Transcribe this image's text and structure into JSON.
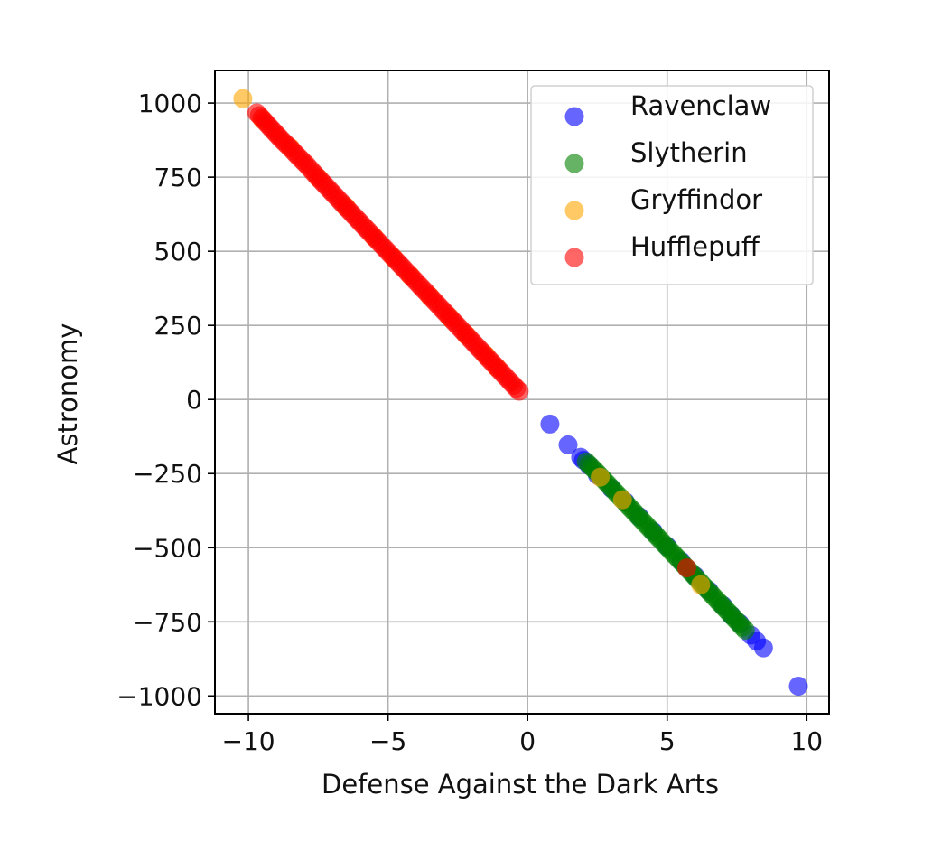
{
  "chart_data": {
    "type": "scatter",
    "title": "",
    "xlabel": "Defense Against the Dark Arts",
    "ylabel": "Astronomy",
    "xlim": [
      -11.2,
      10.8
    ],
    "ylim": [
      -1060,
      1110
    ],
    "xticks": [
      -10,
      -5,
      0,
      5,
      10
    ],
    "xtick_labels": [
      "−10",
      "−5",
      "0",
      "5",
      "10"
    ],
    "yticks": [
      1000,
      750,
      500,
      250,
      0,
      -250,
      -500,
      -750,
      -1000
    ],
    "ytick_labels": [
      "1000",
      "750",
      "500",
      "250",
      "0",
      "−250",
      "−500",
      "−750",
      "−1000"
    ],
    "grid": true,
    "legend_position": "top-right",
    "marker_alpha": 0.6,
    "series": [
      {
        "name": "Ravenclaw",
        "color": "#0000ff",
        "points": [
          [
            0.8,
            -83
          ],
          [
            1.45,
            -153
          ],
          [
            1.9,
            -195
          ],
          [
            2.0,
            -205
          ],
          [
            2.2,
            -222
          ],
          [
            2.5,
            -255
          ],
          [
            3.0,
            -300
          ],
          [
            3.5,
            -345
          ],
          [
            4.0,
            -395
          ],
          [
            4.5,
            -445
          ],
          [
            5.0,
            -495
          ],
          [
            5.5,
            -545
          ],
          [
            6.0,
            -595
          ],
          [
            6.5,
            -645
          ],
          [
            7.0,
            -695
          ],
          [
            7.3,
            -728
          ],
          [
            7.6,
            -755
          ],
          [
            8.0,
            -795
          ],
          [
            8.2,
            -815
          ],
          [
            8.45,
            -838
          ],
          [
            9.7,
            -967
          ]
        ]
      },
      {
        "name": "Slytherin",
        "color": "#008000",
        "points": [
          [
            2.1,
            -210
          ],
          [
            2.4,
            -238
          ],
          [
            2.7,
            -268
          ],
          [
            3.0,
            -298
          ],
          [
            3.3,
            -328
          ],
          [
            3.6,
            -358
          ],
          [
            3.9,
            -388
          ],
          [
            4.2,
            -418
          ],
          [
            4.5,
            -448
          ],
          [
            4.8,
            -478
          ],
          [
            5.1,
            -508
          ],
          [
            5.4,
            -538
          ],
          [
            5.7,
            -568
          ],
          [
            6.0,
            -598
          ],
          [
            6.3,
            -628
          ],
          [
            6.6,
            -658
          ],
          [
            6.9,
            -688
          ],
          [
            7.2,
            -718
          ],
          [
            7.5,
            -748
          ],
          [
            7.8,
            -778
          ]
        ]
      },
      {
        "name": "Gryffindor",
        "color": "#ffa500",
        "points": [
          [
            -10.2,
            1015
          ],
          [
            -9.5,
            945
          ],
          [
            -8.5,
            850
          ],
          [
            -7.5,
            748
          ],
          [
            -6.5,
            650
          ],
          [
            -5.5,
            548
          ],
          [
            -4.8,
            478
          ],
          [
            -4.2,
            418
          ],
          [
            -3.5,
            348
          ],
          [
            -2.8,
            278
          ],
          [
            -2.2,
            218
          ],
          [
            -1.5,
            150
          ],
          [
            -1.1,
            108
          ],
          [
            2.6,
            -262
          ],
          [
            3.4,
            -338
          ],
          [
            6.2,
            -625
          ]
        ]
      },
      {
        "name": "Hufflepuff",
        "color": "#ff0000",
        "points": [
          [
            -9.7,
            967
          ],
          [
            -8.8,
            875
          ],
          [
            -8.5,
            848
          ],
          [
            -8.2,
            818
          ],
          [
            -7.9,
            790
          ],
          [
            -7.6,
            758
          ],
          [
            -7.3,
            728
          ],
          [
            -7.0,
            698
          ],
          [
            -6.7,
            668
          ],
          [
            -6.4,
            638
          ],
          [
            -6.1,
            608
          ],
          [
            -5.8,
            578
          ],
          [
            -5.5,
            548
          ],
          [
            -5.2,
            518
          ],
          [
            -4.9,
            488
          ],
          [
            -4.6,
            458
          ],
          [
            -4.3,
            428
          ],
          [
            -4.0,
            398
          ],
          [
            -3.7,
            368
          ],
          [
            -3.4,
            338
          ],
          [
            -3.1,
            308
          ],
          [
            -2.8,
            278
          ],
          [
            -2.5,
            248
          ],
          [
            -2.2,
            218
          ],
          [
            -1.9,
            188
          ],
          [
            -1.6,
            158
          ],
          [
            -1.4,
            138
          ],
          [
            -1.0,
            98
          ],
          [
            -0.5,
            48
          ],
          [
            -0.3,
            28
          ],
          [
            5.7,
            -568
          ]
        ]
      }
    ]
  }
}
